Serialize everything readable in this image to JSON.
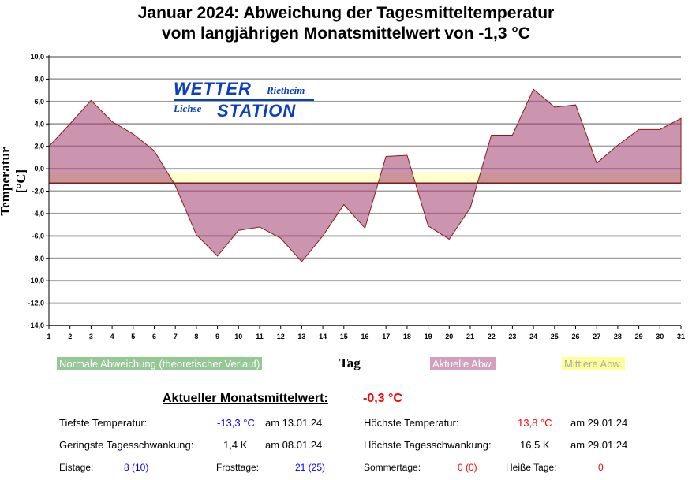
{
  "title_line1": "Januar 2024: Abweichung der Tagesmitteltemperatur",
  "title_line2": "vom langjährigen Monatsmittelwert von -1,3 °C",
  "logo": {
    "word1": "WETTER",
    "word2": "Rietheim",
    "word3": "Lichse",
    "word4": "STATION"
  },
  "chart_data": {
    "type": "area",
    "xlabel": "Tag",
    "ylabel": "Temperatur [°C]",
    "ylim": [
      -14,
      10
    ],
    "yticks": [
      "10,0",
      "8,0",
      "6,0",
      "4,0",
      "2,0",
      "0,0",
      "-2,0",
      "-4,0",
      "-6,0",
      "-8,0",
      "-10,0",
      "-12,0",
      "-14,0"
    ],
    "x": [
      1,
      2,
      3,
      4,
      5,
      6,
      7,
      8,
      9,
      10,
      11,
      12,
      13,
      14,
      15,
      16,
      17,
      18,
      19,
      20,
      21,
      22,
      23,
      24,
      25,
      26,
      27,
      28,
      29,
      30,
      31
    ],
    "baseline": -1.3,
    "mean_actual": -0.3,
    "series": [
      {
        "name": "Aktuelle Abw.",
        "color": "#c994ac",
        "values": [
          2.0,
          4.0,
          6.1,
          4.2,
          3.1,
          1.6,
          -1.5,
          -5.9,
          -7.8,
          -5.5,
          -5.2,
          -6.2,
          -8.3,
          -6.0,
          -3.2,
          -5.3,
          1.1,
          1.2,
          -5.1,
          -6.3,
          -3.5,
          3.0,
          3.0,
          7.1,
          5.5,
          5.7,
          0.5,
          2.1,
          3.5,
          3.5,
          4.5
        ]
      }
    ],
    "legend": [
      {
        "label": "Normale Abweichung (theoretischer Verlauf)",
        "color": "#96c896"
      },
      {
        "label": "Aktuelle Abw.",
        "color": "#d2a0bc"
      },
      {
        "label": "Mittlere Abw.",
        "color": "#ffff99"
      }
    ]
  },
  "stats": {
    "mean_label": "Aktueller Monatsmittelwert:",
    "mean_value": "-0,3 °C",
    "min_label": "Tiefste Temperatur:",
    "min_value": "-13,3 °C",
    "min_date": "am 13.01.24",
    "max_label": "Höchste Temperatur:",
    "max_value": "13,8 °C",
    "max_date": "am 29.01.24",
    "minsw_label": "Geringste Tagesschwankung:",
    "minsw_value": "1,4 K",
    "minsw_date": "am 08.01.24",
    "maxsw_label": "Höchste Tagesschwankung:",
    "maxsw_value": "16,5 K",
    "maxsw_date": "am 29.01.24",
    "eis_label": "Eistage:",
    "eis_value": "8 (10)",
    "frost_label": "Frosttage:",
    "frost_value": "21 (25)",
    "sommer_label": "Sommertage:",
    "sommer_value": "0 (0)",
    "heiss_label": "Heiße Tage:",
    "heiss_value": "0"
  }
}
